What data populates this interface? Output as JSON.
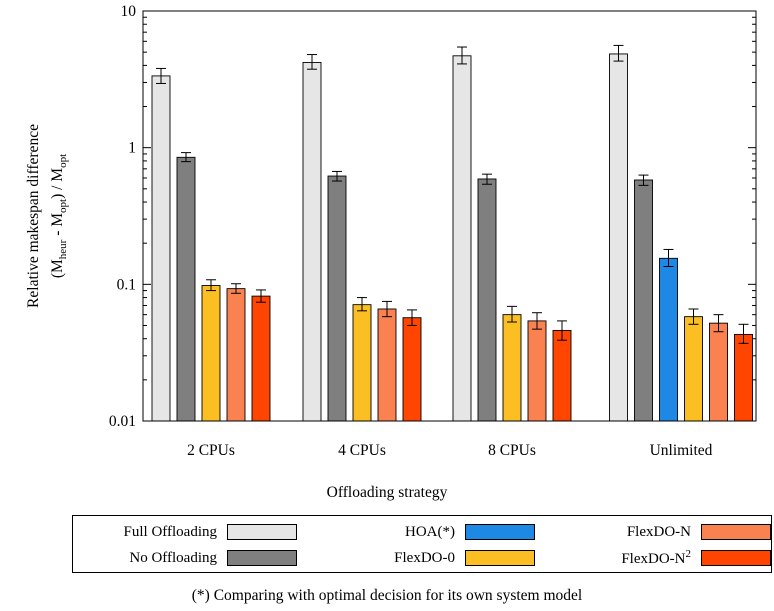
{
  "chart_data": {
    "type": "bar",
    "y_scale": "log",
    "ylim": [
      0.01,
      10
    ],
    "yticks": [
      "0.01",
      "0.1",
      "1",
      "10"
    ],
    "ytick_values": [
      0.01,
      0.1,
      1,
      10
    ],
    "ylabel_line1": "Relative makespan difference",
    "ylabel_line2": {
      "a": "(M",
      "a_sub": "heur",
      "b": " - M",
      "b_sub": "opt",
      "c": ")  /  M",
      "c_sub": "opt"
    },
    "xlabel": "Offloading strategy",
    "categories": [
      "2 CPUs",
      "4 CPUs",
      "8 CPUs",
      "Unlimited"
    ],
    "series": [
      {
        "name": "Full Offloading",
        "color": "#e6e6e6",
        "values": [
          3.35,
          4.2,
          4.7,
          4.85
        ],
        "err_low": [
          2.95,
          3.75,
          4.1,
          4.3
        ],
        "err_high": [
          3.8,
          4.8,
          5.45,
          5.6
        ]
      },
      {
        "name": "No Offloading",
        "color": "#7f7f7f",
        "values": [
          0.85,
          0.62,
          0.59,
          0.58
        ],
        "err_low": [
          0.79,
          0.57,
          0.54,
          0.53
        ],
        "err_high": [
          0.92,
          0.67,
          0.64,
          0.63
        ]
      },
      {
        "name": "HOA(*)",
        "color": "#1e88e5",
        "values": [
          null,
          null,
          null,
          0.155
        ],
        "err_low": [
          null,
          null,
          null,
          0.135
        ],
        "err_high": [
          null,
          null,
          null,
          0.18
        ]
      },
      {
        "name": "FlexDO-0",
        "color": "#fbbf24",
        "values": [
          0.098,
          0.071,
          0.06,
          0.058
        ],
        "err_low": [
          0.09,
          0.064,
          0.053,
          0.051
        ],
        "err_high": [
          0.108,
          0.08,
          0.069,
          0.066
        ]
      },
      {
        "name": "FlexDO-N",
        "color": "#fa8150",
        "values": [
          0.093,
          0.066,
          0.054,
          0.052
        ],
        "err_low": [
          0.086,
          0.058,
          0.047,
          0.045
        ],
        "err_high": [
          0.101,
          0.075,
          0.062,
          0.06
        ]
      },
      {
        "name": "FlexDO-N",
        "name_sup": "2",
        "color": "#ff4500",
        "values": [
          0.082,
          0.057,
          0.046,
          0.043
        ],
        "err_low": [
          0.074,
          0.05,
          0.039,
          0.037
        ],
        "err_high": [
          0.091,
          0.065,
          0.054,
          0.051
        ]
      }
    ],
    "grid": false,
    "legend_placement": "bottom"
  },
  "footnote": "(*) Comparing with optimal decision for its own system model"
}
